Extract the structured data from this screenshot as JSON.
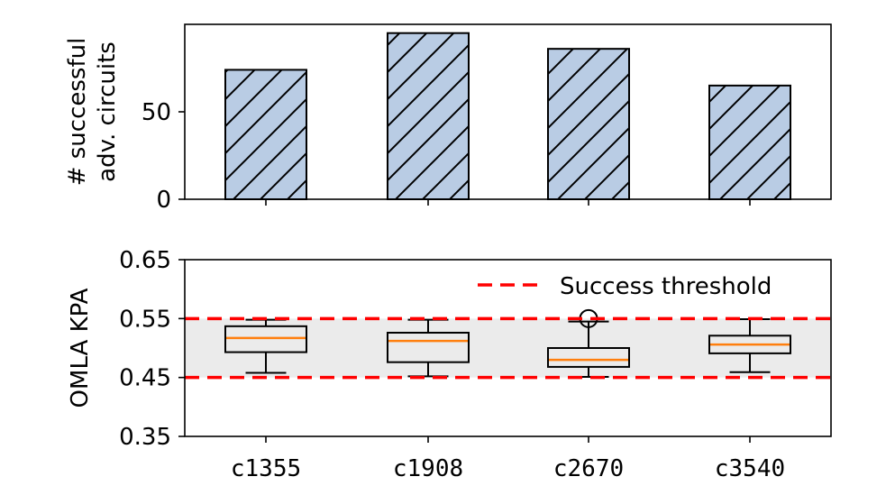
{
  "chart_data": [
    {
      "type": "bar",
      "categories": [
        "c1355",
        "c1908",
        "c2670",
        "c3540"
      ],
      "values": [
        74,
        95,
        86,
        65
      ],
      "ylabel_line1": "# successful",
      "ylabel_line2": "adv. circuits",
      "ylim": [
        0,
        100
      ],
      "yticks": [
        "0",
        "50"
      ],
      "bar_color": "#b9cce4",
      "hatch": "diagonal"
    },
    {
      "type": "box",
      "categories": [
        "c1355",
        "c1908",
        "c2670",
        "c3540"
      ],
      "boxes": [
        {
          "whislo": 0.458,
          "q1": 0.493,
          "med": 0.517,
          "q3": 0.537,
          "whishi": 0.548,
          "fliers": []
        },
        {
          "whislo": 0.452,
          "q1": 0.476,
          "med": 0.512,
          "q3": 0.526,
          "whishi": 0.548,
          "fliers": []
        },
        {
          "whislo": 0.451,
          "q1": 0.468,
          "med": 0.48,
          "q3": 0.5,
          "whishi": 0.545,
          "fliers": [
            0.55
          ]
        },
        {
          "whislo": 0.459,
          "q1": 0.491,
          "med": 0.506,
          "q3": 0.521,
          "whishi": 0.549,
          "fliers": []
        }
      ],
      "ylabel": "OMLA KPA",
      "ylim": [
        0.35,
        0.65
      ],
      "yticks": [
        "0.35",
        "0.45",
        "0.55",
        "0.65"
      ],
      "threshold_low": 0.45,
      "threshold_high": 0.55,
      "threshold_color": "#ff0000",
      "band_color": "#ebebeb",
      "median_color": "#ff7f0e",
      "legend_label": "Success threshold",
      "legend_position": "top-right"
    }
  ]
}
